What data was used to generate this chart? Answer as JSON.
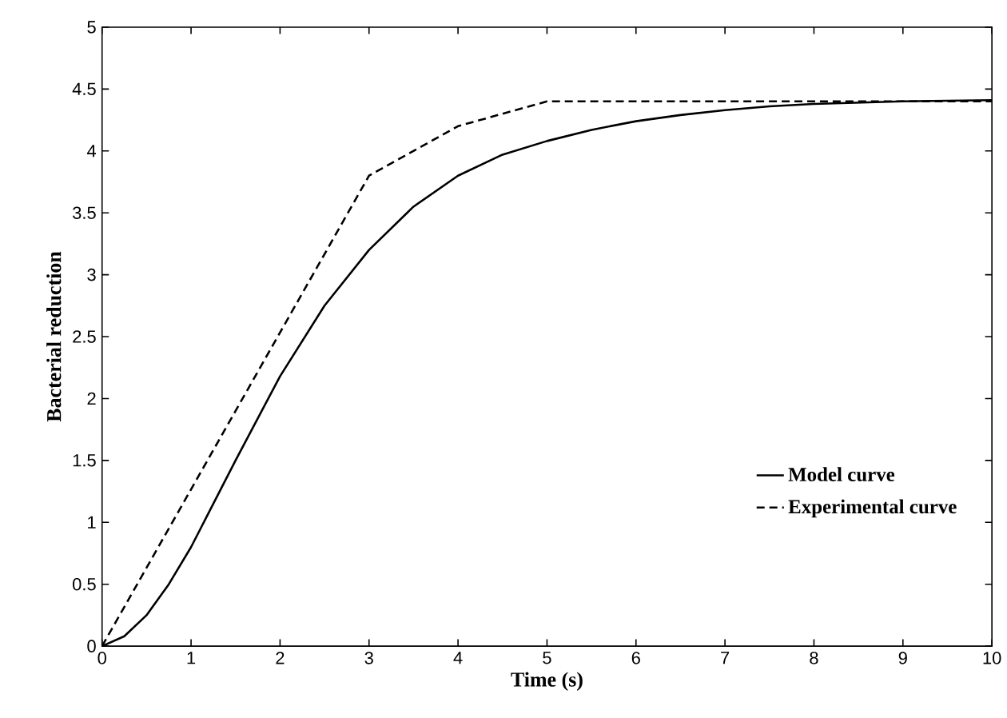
{
  "chart_data": {
    "type": "line",
    "xlabel": "Time (s)",
    "ylabel": "Bacterial reduction",
    "xlim": [
      0,
      10
    ],
    "ylim": [
      0,
      5
    ],
    "xticks": [
      0,
      1,
      2,
      3,
      4,
      5,
      6,
      7,
      8,
      9,
      10
    ],
    "yticks": [
      0,
      0.5,
      1,
      1.5,
      2,
      2.5,
      3,
      3.5,
      4,
      4.5,
      5
    ],
    "legend": "right",
    "grid": false,
    "marker": "none",
    "series": [
      {
        "name": "Model curve",
        "color": "#000000",
        "line_style": "solid",
        "x": [
          0,
          0.25,
          0.5,
          0.75,
          1,
          1.5,
          2,
          2.5,
          3,
          3.5,
          4,
          4.5,
          5,
          5.5,
          6,
          6.5,
          7,
          7.5,
          8,
          8.5,
          9,
          10
        ],
        "values": [
          0,
          0.08,
          0.25,
          0.5,
          0.8,
          1.5,
          2.18,
          2.75,
          3.2,
          3.55,
          3.8,
          3.97,
          4.08,
          4.17,
          4.24,
          4.29,
          4.33,
          4.36,
          4.38,
          4.39,
          4.4,
          4.41
        ]
      },
      {
        "name": "Experimental curve",
        "color": "#000000",
        "line_style": "dashed",
        "x": [
          0,
          3,
          4,
          5,
          10
        ],
        "values": [
          0,
          3.8,
          4.2,
          4.4,
          4.4
        ]
      }
    ]
  }
}
